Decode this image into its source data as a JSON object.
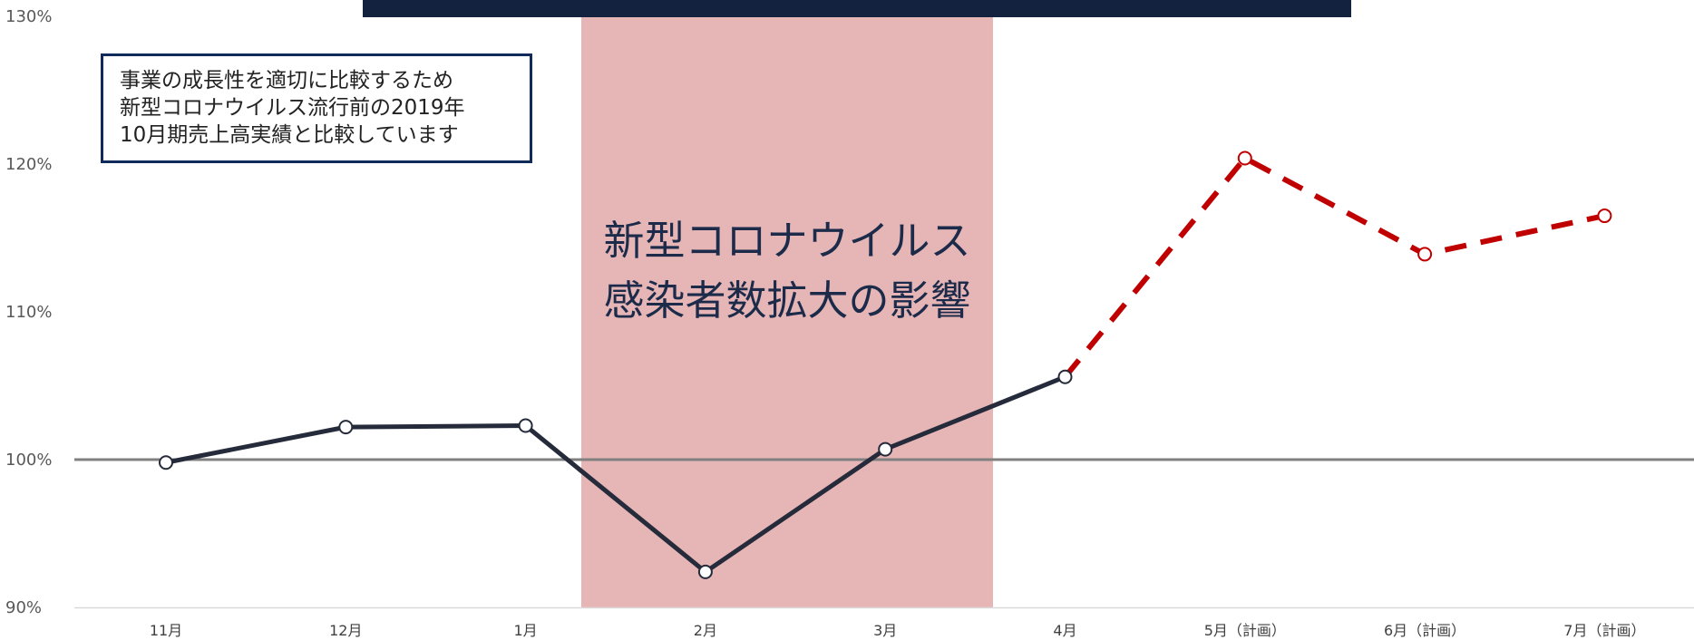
{
  "chart_data": {
    "type": "line",
    "title": "",
    "xlabel": "",
    "ylabel": "",
    "ylim": [
      90,
      130
    ],
    "yticks": [
      90,
      100,
      110,
      120,
      130
    ],
    "ytick_labels": [
      "90%",
      "100%",
      "110%",
      "120%",
      "130%"
    ],
    "categories": [
      "11月",
      "12月",
      "1月",
      "2月",
      "3月",
      "4月",
      "5月（計画）",
      "6月（計画）",
      "7月（計画）"
    ],
    "series": [
      {
        "style": "solid",
        "color": "#252b3a",
        "x": [
          "11月",
          "12月",
          "1月",
          "2月",
          "3月",
          "4月"
        ],
        "values": [
          99.8,
          102.2,
          102.3,
          92.4,
          100.7,
          105.6
        ]
      },
      {
        "style": "dashed",
        "color": "#c00000",
        "x": [
          "4月",
          "5月（計画）",
          "6月（計画）",
          "7月（計画）"
        ],
        "values": [
          105.6,
          120.4,
          113.9,
          116.5
        ]
      }
    ],
    "reference_line": {
      "value": 100,
      "color": "#808080"
    },
    "shaded_region": {
      "from_category": "1月",
      "to_category": "3月",
      "color": "#e6b6b6",
      "label_lines": [
        "新型コロナウイルス",
        "感染者数拡大の影響"
      ]
    },
    "note_lines": [
      "事業の成長性を適切に比較するため",
      "新型コロナウイルス流行前の2019年",
      "10月期売上高実績と比較しています"
    ]
  }
}
